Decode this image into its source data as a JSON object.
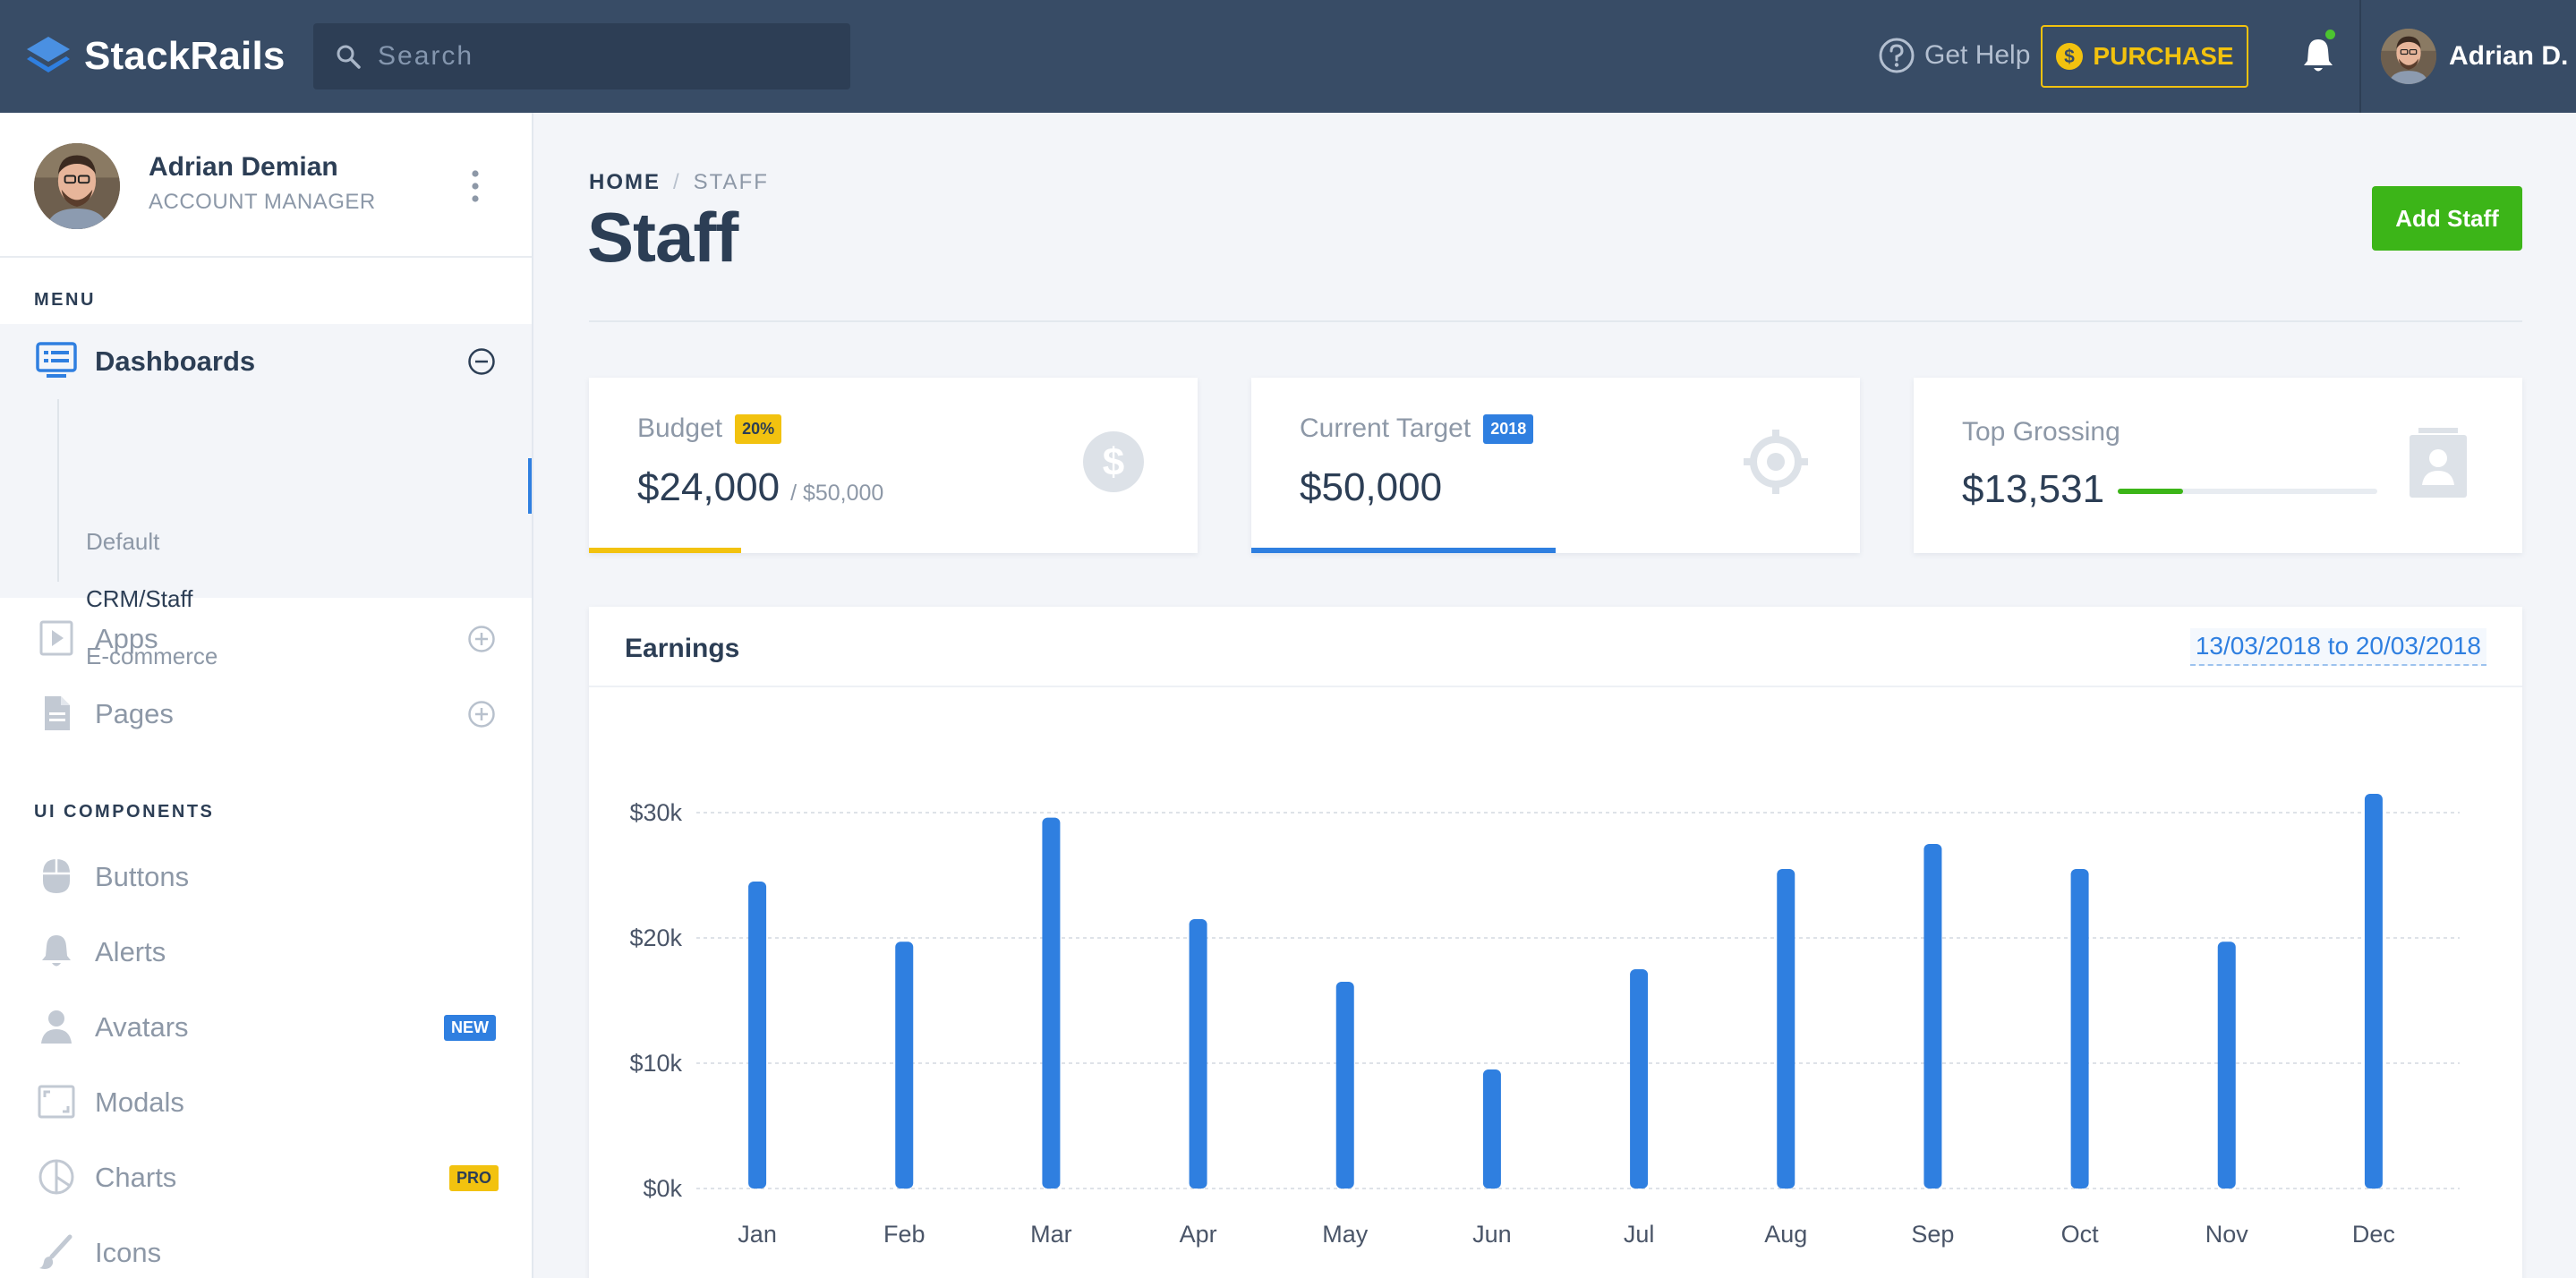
{
  "brand": {
    "name": "StackRails"
  },
  "search": {
    "placeholder": "Search"
  },
  "topnav": {
    "help_label": "Get Help",
    "purchase_label": "PURCHASE",
    "user_name": "Adrian D."
  },
  "sidebar": {
    "profile": {
      "name": "Adrian Demian",
      "role": "ACCOUNT MANAGER"
    },
    "menu_heading": "MENU",
    "dashboards": {
      "label": "Dashboards",
      "items": [
        {
          "label": "Default"
        },
        {
          "label": "CRM/Staff"
        },
        {
          "label": "E-commerce"
        }
      ]
    },
    "apps_label": "Apps",
    "pages_label": "Pages",
    "ui_heading": "UI COMPONENTS",
    "components": [
      {
        "label": "Buttons",
        "icon": "mouse-icon"
      },
      {
        "label": "Alerts",
        "icon": "bell-icon"
      },
      {
        "label": "Avatars",
        "icon": "user-icon",
        "badge": "NEW"
      },
      {
        "label": "Modals",
        "icon": "window-icon"
      },
      {
        "label": "Charts",
        "icon": "pie-chart-icon",
        "badge": "PRO"
      },
      {
        "label": "Icons",
        "icon": "brush-icon"
      }
    ]
  },
  "page": {
    "breadcrumb": {
      "home": "HOME",
      "current": "STAFF"
    },
    "title": "Staff",
    "add_button": "Add Staff"
  },
  "cards": {
    "budget": {
      "label": "Budget",
      "badge": "20%",
      "value": "$24,000",
      "suffix": "/ $50,000",
      "progress": 0.25
    },
    "target": {
      "label": "Current Target",
      "badge": "2018",
      "value": "$50,000",
      "progress": 0.5
    },
    "grossing": {
      "label": "Top Grossing",
      "value": "$13,531",
      "progress": 0.25
    }
  },
  "earnings": {
    "title": "Earnings",
    "date_range": "13/03/2018 to 20/03/2018"
  },
  "colors": {
    "navbar": "#384c66",
    "accent_blue": "#2f7fe0",
    "accent_green": "#3cb518",
    "accent_yellow": "#f2c20f"
  },
  "chart_data": {
    "type": "bar",
    "categories": [
      "Jan",
      "Feb",
      "Mar",
      "Apr",
      "May",
      "Jun",
      "Jul",
      "Aug",
      "Sep",
      "Oct",
      "Nov",
      "Dec"
    ],
    "values": [
      24500,
      19700,
      29600,
      21500,
      16500,
      9500,
      17500,
      25500,
      27500,
      25500,
      19700,
      31500
    ],
    "ylim": [
      0,
      32000
    ],
    "yticks": [
      0,
      10000,
      20000,
      30000
    ],
    "ytick_labels": [
      "$0k",
      "$10k",
      "$20k",
      "$30k"
    ],
    "grid": true,
    "bar_color": "#2f7fe0"
  }
}
